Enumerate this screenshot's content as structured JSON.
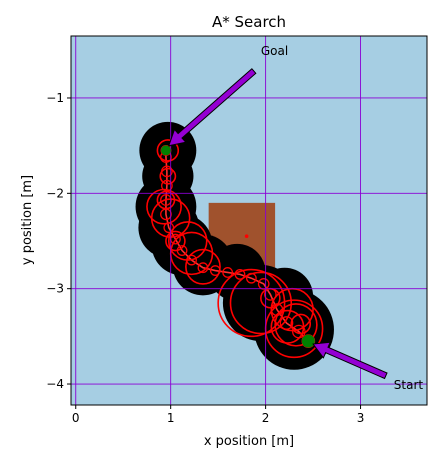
{
  "chart_data": {
    "type": "scatter",
    "title": "A* Search",
    "xlabel": "x position [m]",
    "ylabel": "y position [m]",
    "xlim": [
      -0.05,
      3.7
    ],
    "ylim": [
      -4.22,
      -0.35
    ],
    "xticks": [
      0,
      1,
      2,
      3
    ],
    "yticks": [
      -1,
      -2,
      -3,
      -4
    ],
    "grid": true,
    "colors": {
      "background": "#a6cee3",
      "grid": "#8a00d4",
      "obstacle": "#a0522d",
      "footprint": "#000000",
      "circles": "#ff0000",
      "markers": "#008000",
      "arrow": "#9400d3"
    },
    "obstacle": {
      "x": [
        1.4,
        2.1
      ],
      "y": [
        -2.78,
        -2.1
      ]
    },
    "obstacle_center": {
      "x": 1.8,
      "y": -2.45
    },
    "path": [
      {
        "x": 2.45,
        "y": -3.55,
        "r": 0.13
      },
      {
        "x": 2.35,
        "y": -3.45,
        "r": 0.13
      },
      {
        "x": 2.22,
        "y": -3.36,
        "r": 0.13
      },
      {
        "x": 2.12,
        "y": -3.22,
        "r": 0.12
      },
      {
        "x": 2.05,
        "y": -3.06,
        "r": 0.12
      },
      {
        "x": 1.98,
        "y": -2.95,
        "r": 0.11
      },
      {
        "x": 1.85,
        "y": -2.89,
        "r": 0.1
      },
      {
        "x": 1.73,
        "y": -2.85,
        "r": 0.1
      },
      {
        "x": 1.6,
        "y": -2.83,
        "r": 0.1
      },
      {
        "x": 1.47,
        "y": -2.81,
        "r": 0.1
      },
      {
        "x": 1.34,
        "y": -2.78,
        "r": 0.1
      },
      {
        "x": 1.22,
        "y": -2.7,
        "r": 0.1
      },
      {
        "x": 1.12,
        "y": -2.6,
        "r": 0.1
      },
      {
        "x": 1.05,
        "y": -2.48,
        "r": 0.1
      },
      {
        "x": 0.98,
        "y": -2.36,
        "r": 0.1
      },
      {
        "x": 0.95,
        "y": -2.22,
        "r": 0.11
      },
      {
        "x": 0.95,
        "y": -2.07,
        "r": 0.11
      },
      {
        "x": 0.96,
        "y": -1.92,
        "r": 0.11
      },
      {
        "x": 0.96,
        "y": -1.77,
        "r": 0.11
      },
      {
        "x": 0.95,
        "y": -1.62,
        "r": 0.11
      },
      {
        "x": 0.95,
        "y": -1.55,
        "r": 0.1
      }
    ],
    "footprint_circles": [
      {
        "x": 0.97,
        "y": -1.55,
        "r": 0.3
      },
      {
        "x": 0.97,
        "y": -1.82,
        "r": 0.27
      },
      {
        "x": 0.95,
        "y": -2.14,
        "r": 0.32
      },
      {
        "x": 0.98,
        "y": -2.36,
        "r": 0.32
      },
      {
        "x": 1.12,
        "y": -2.54,
        "r": 0.32
      },
      {
        "x": 1.34,
        "y": -2.75,
        "r": 0.32
      },
      {
        "x": 1.7,
        "y": -2.83,
        "r": 0.3
      },
      {
        "x": 1.95,
        "y": -3.15,
        "r": 0.4
      },
      {
        "x": 2.2,
        "y": -3.08,
        "r": 0.3
      },
      {
        "x": 2.3,
        "y": -3.43,
        "r": 0.42
      }
    ],
    "red_circles": [
      {
        "x": 0.97,
        "y": -1.55,
        "r": 0.11
      },
      {
        "x": 0.97,
        "y": -1.82,
        "r": 0.08
      },
      {
        "x": 0.95,
        "y": -2.07,
        "r": 0.09
      },
      {
        "x": 0.93,
        "y": -2.14,
        "r": 0.18
      },
      {
        "x": 1.0,
        "y": -2.26,
        "r": 0.2
      },
      {
        "x": 1.05,
        "y": -2.5,
        "r": 0.1
      },
      {
        "x": 1.18,
        "y": -2.5,
        "r": 0.2
      },
      {
        "x": 1.22,
        "y": -2.63,
        "r": 0.22
      },
      {
        "x": 1.34,
        "y": -2.77,
        "r": 0.18
      },
      {
        "x": 1.85,
        "y": -3.15,
        "r": 0.35
      },
      {
        "x": 1.95,
        "y": -3.15,
        "r": 0.32
      },
      {
        "x": 2.05,
        "y": -3.1,
        "r": 0.1
      },
      {
        "x": 2.28,
        "y": -3.22,
        "r": 0.22
      },
      {
        "x": 2.23,
        "y": -3.4,
        "r": 0.17
      },
      {
        "x": 2.3,
        "y": -3.42,
        "r": 0.3
      },
      {
        "x": 2.32,
        "y": -3.38,
        "r": 0.22
      },
      {
        "x": 2.37,
        "y": -3.37,
        "r": 0.1
      }
    ],
    "start": {
      "x": 2.45,
      "y": -3.55
    },
    "goal": {
      "x": 0.95,
      "y": -1.55
    },
    "annotations": [
      {
        "text": "Goal",
        "x": 1.95,
        "y": -0.55,
        "point_x": 0.98,
        "point_y": -1.5
      },
      {
        "text": "Start",
        "x": 3.35,
        "y": -4.05,
        "point_x": 2.5,
        "point_y": -3.58
      }
    ]
  }
}
